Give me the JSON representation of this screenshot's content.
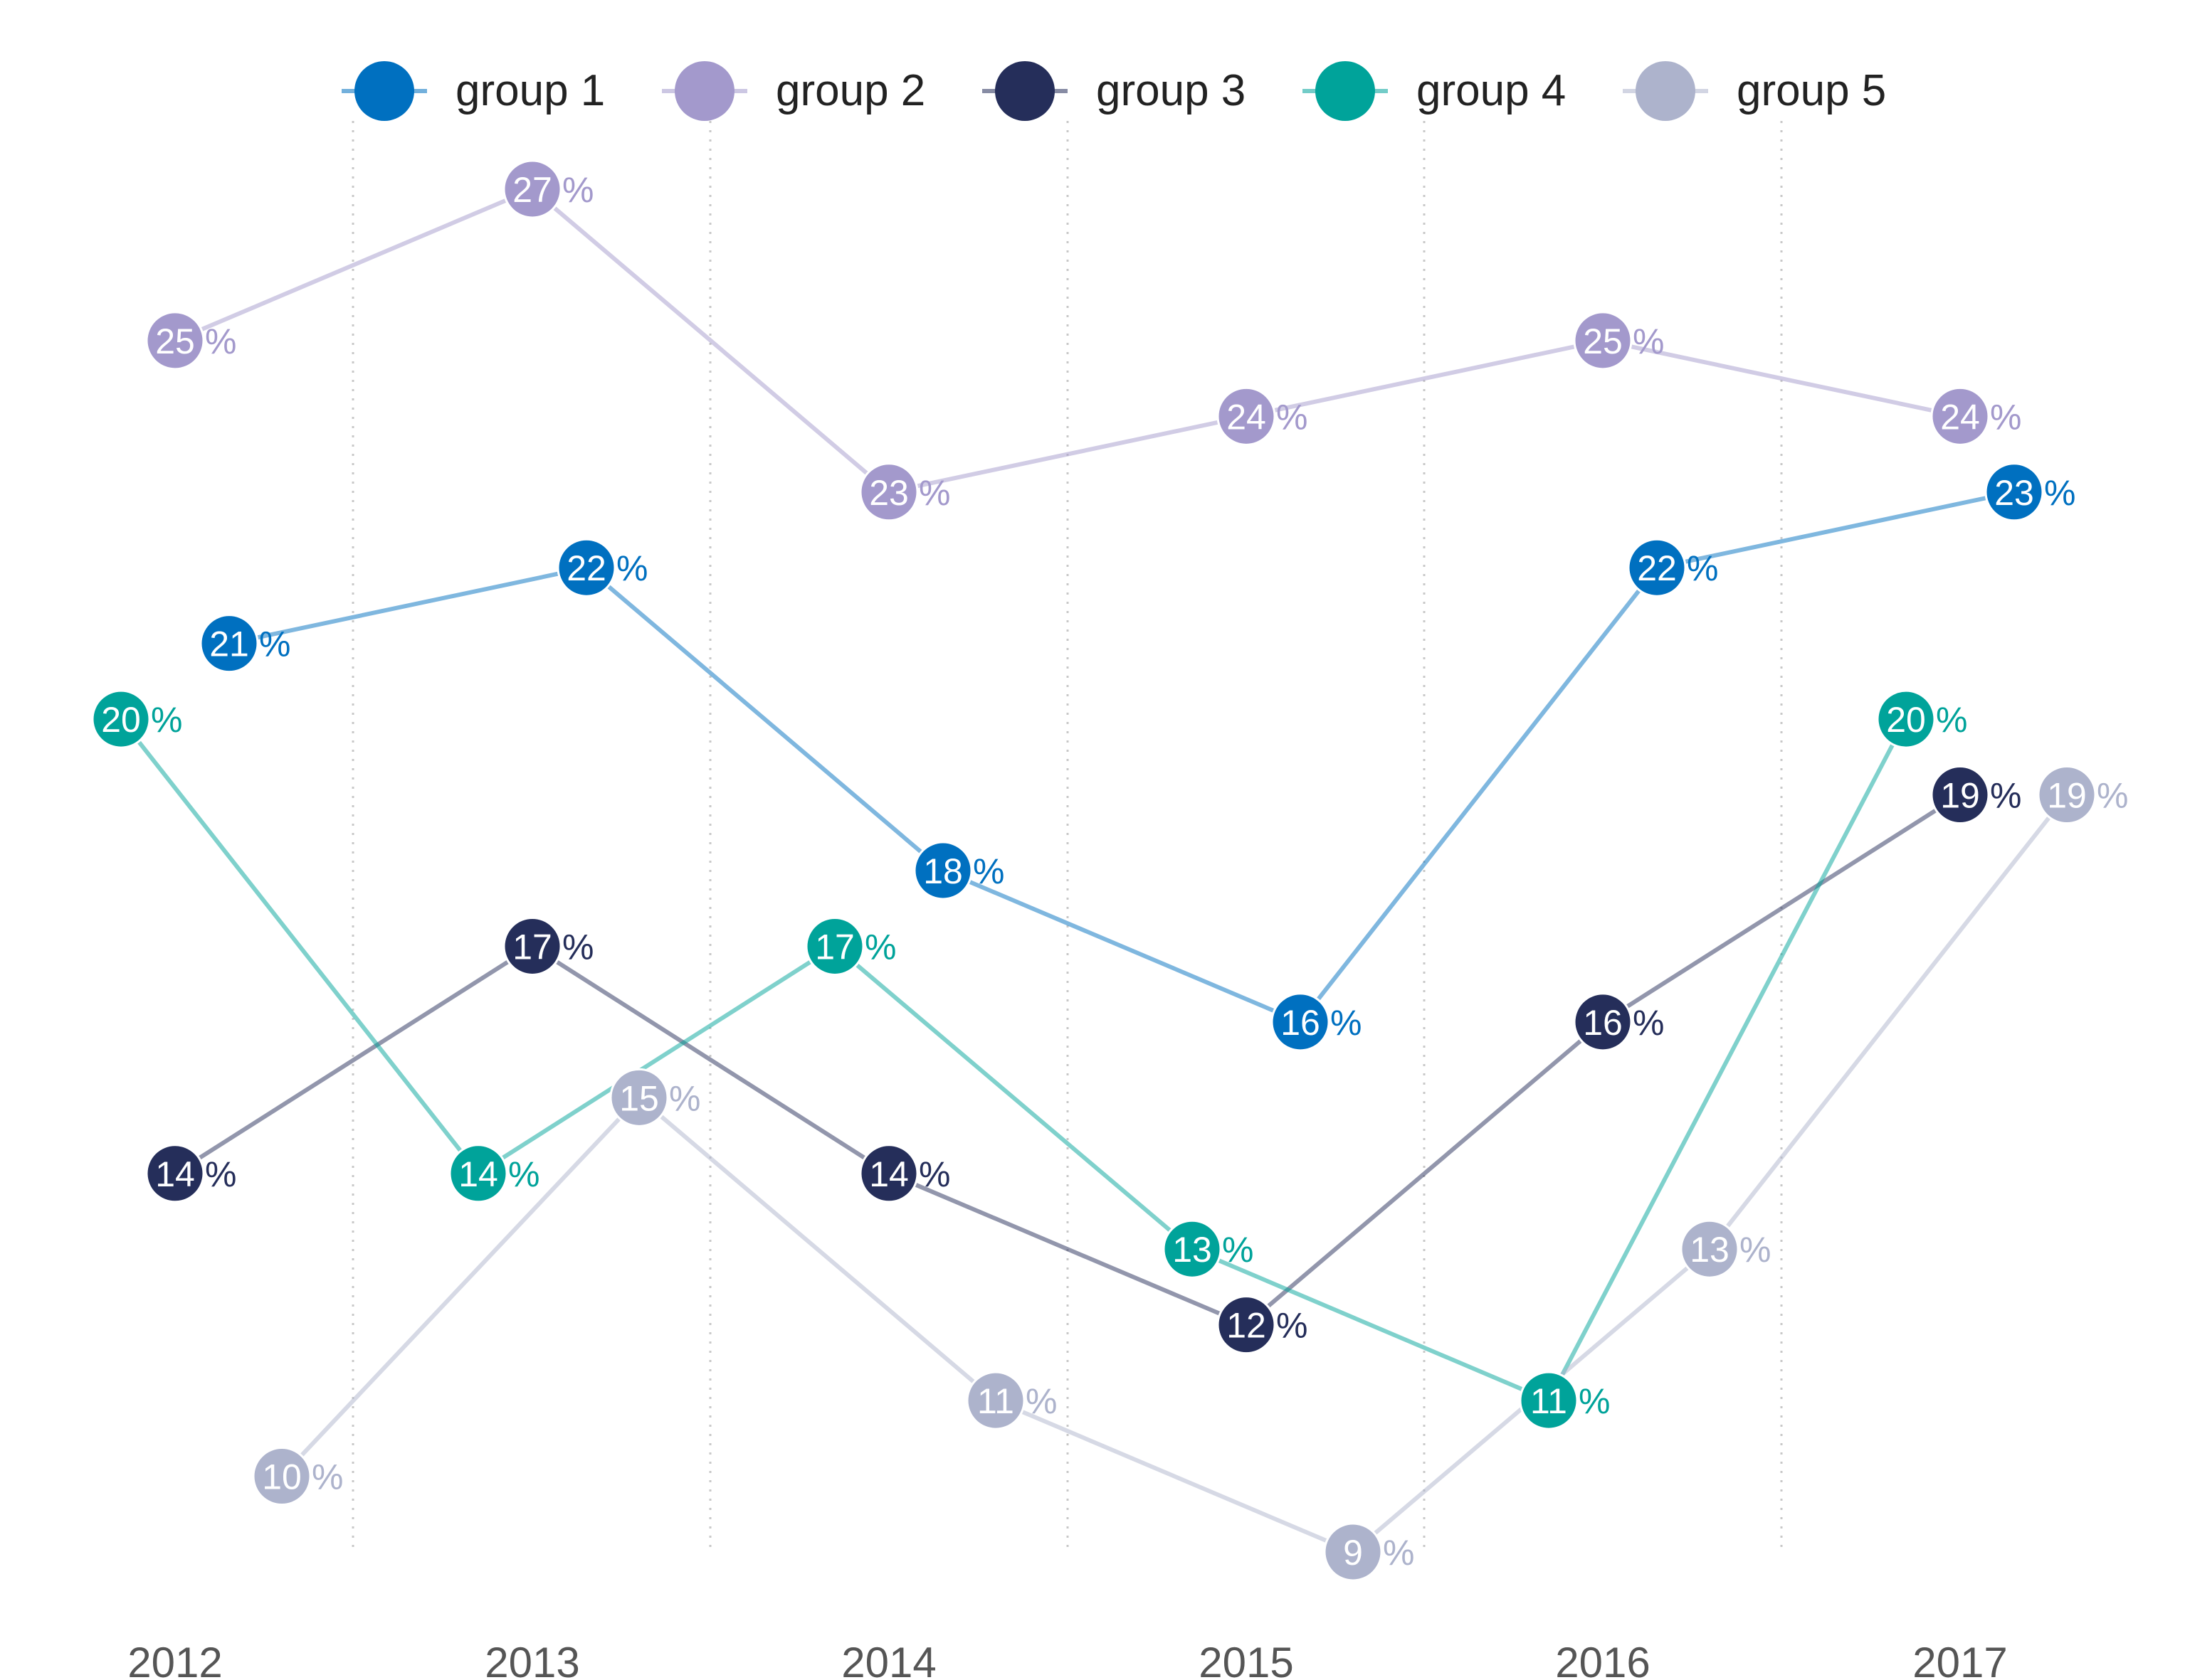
{
  "chart_data": {
    "type": "line",
    "categories": [
      "2012",
      "2013",
      "2014",
      "2015",
      "2016",
      "2017"
    ],
    "ylim": [
      8,
      28
    ],
    "grid": "vertical dotted separators",
    "legend": "top",
    "value_suffix": "%",
    "series": [
      {
        "name": "group 1",
        "color": "#0070c0",
        "values": [
          21,
          22,
          18,
          16,
          22,
          23
        ]
      },
      {
        "name": "group 2",
        "color": "#a399cc",
        "values": [
          25,
          27,
          23,
          24,
          25,
          24
        ]
      },
      {
        "name": "group 3",
        "color": "#252e5a",
        "values": [
          14,
          17,
          14,
          12,
          16,
          19
        ]
      },
      {
        "name": "group 4",
        "color": "#00a39a",
        "values": [
          20,
          14,
          17,
          13,
          11,
          20
        ]
      },
      {
        "name": "group 5",
        "color": "#adb3cc",
        "values": [
          10,
          15,
          11,
          9,
          13,
          19
        ]
      }
    ]
  }
}
